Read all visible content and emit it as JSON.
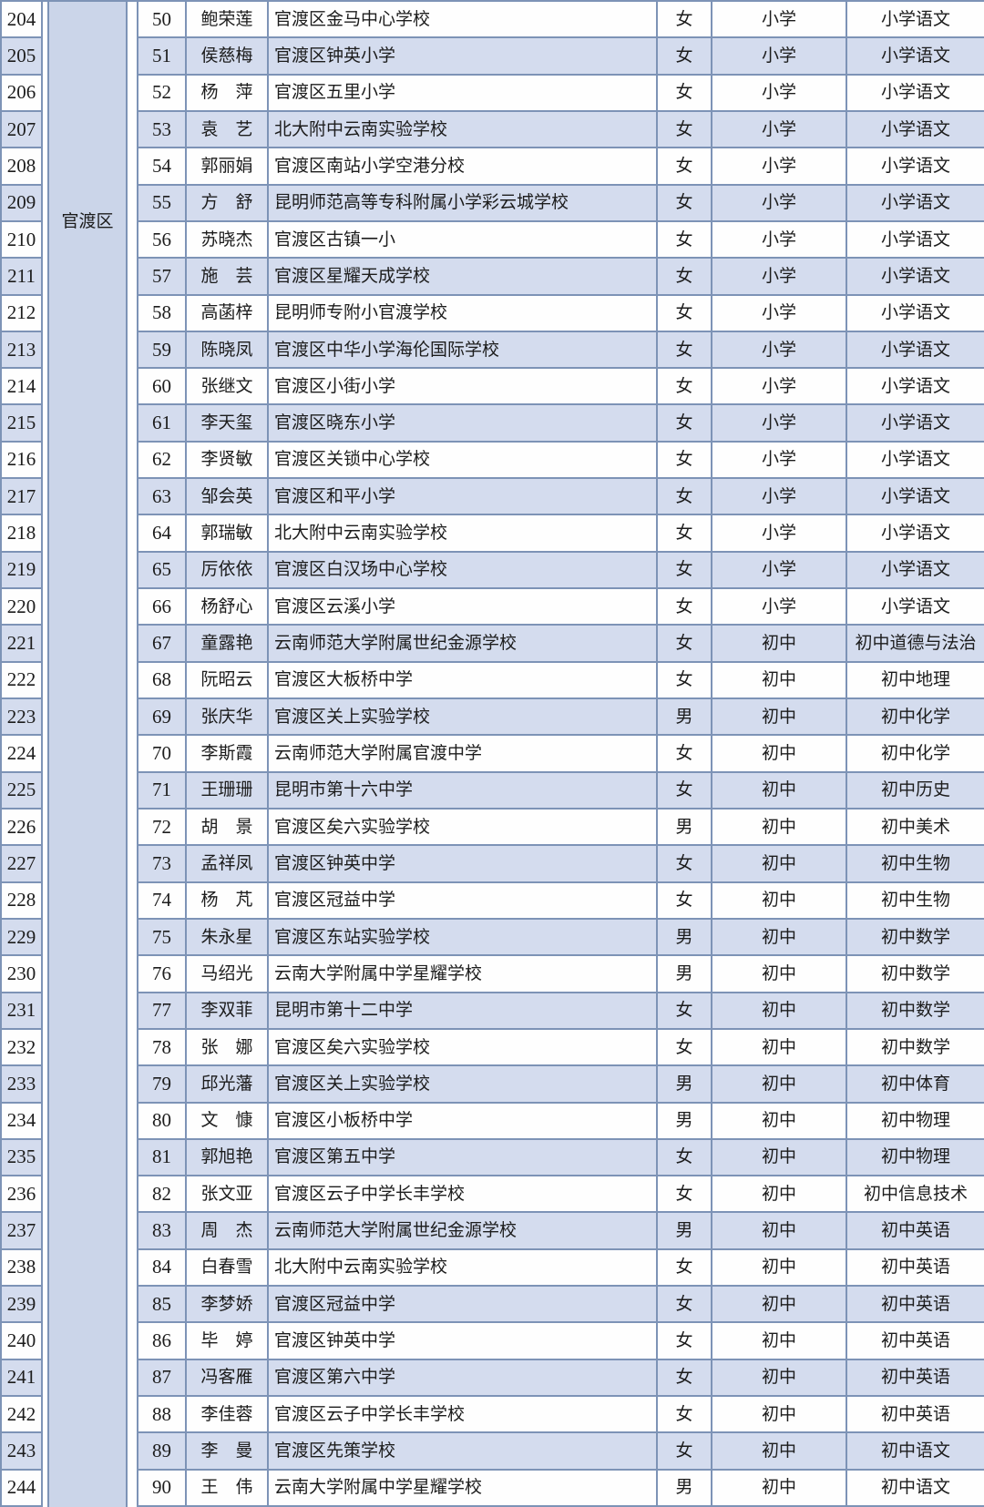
{
  "table": {
    "region_label": "官渡区",
    "rows": [
      [
        204,
        50,
        "鲍荣莲",
        "官渡区金马中心学校",
        "女",
        "小学",
        "小学语文"
      ],
      [
        205,
        51,
        "侯慈梅",
        "官渡区钟英小学",
        "女",
        "小学",
        "小学语文"
      ],
      [
        206,
        52,
        "杨　萍",
        "官渡区五里小学",
        "女",
        "小学",
        "小学语文"
      ],
      [
        207,
        53,
        "袁　艺",
        "北大附中云南实验学校",
        "女",
        "小学",
        "小学语文"
      ],
      [
        208,
        54,
        "郭丽娟",
        "官渡区南站小学空港分校",
        "女",
        "小学",
        "小学语文"
      ],
      [
        209,
        55,
        "方　舒",
        "昆明师范高等专科附属小学彩云城学校",
        "女",
        "小学",
        "小学语文"
      ],
      [
        210,
        56,
        "苏晓杰",
        "官渡区古镇一小",
        "女",
        "小学",
        "小学语文"
      ],
      [
        211,
        57,
        "施　芸",
        "官渡区星耀天成学校",
        "女",
        "小学",
        "小学语文"
      ],
      [
        212,
        58,
        "高菡梓",
        "昆明师专附小官渡学校",
        "女",
        "小学",
        "小学语文"
      ],
      [
        213,
        59,
        "陈晓凤",
        "官渡区中华小学海伦国际学校",
        "女",
        "小学",
        "小学语文"
      ],
      [
        214,
        60,
        "张继文",
        "官渡区小街小学",
        "女",
        "小学",
        "小学语文"
      ],
      [
        215,
        61,
        "李天玺",
        "官渡区晓东小学",
        "女",
        "小学",
        "小学语文"
      ],
      [
        216,
        62,
        "李贤敏",
        "官渡区关锁中心学校",
        "女",
        "小学",
        "小学语文"
      ],
      [
        217,
        63,
        "邹会英",
        "官渡区和平小学",
        "女",
        "小学",
        "小学语文"
      ],
      [
        218,
        64,
        "郭瑞敏",
        "北大附中云南实验学校",
        "女",
        "小学",
        "小学语文"
      ],
      [
        219,
        65,
        "厉依依",
        "官渡区白汉场中心学校",
        "女",
        "小学",
        "小学语文"
      ],
      [
        220,
        66,
        "杨舒心",
        "官渡区云溪小学",
        "女",
        "小学",
        "小学语文"
      ],
      [
        221,
        67,
        "童露艳",
        "云南师范大学附属世纪金源学校",
        "女",
        "初中",
        "初中道德与法治"
      ],
      [
        222,
        68,
        "阮昭云",
        "官渡区大板桥中学",
        "女",
        "初中",
        "初中地理"
      ],
      [
        223,
        69,
        "张庆华",
        "官渡区关上实验学校",
        "男",
        "初中",
        "初中化学"
      ],
      [
        224,
        70,
        "李斯霞",
        "云南师范大学附属官渡中学",
        "女",
        "初中",
        "初中化学"
      ],
      [
        225,
        71,
        "王珊珊",
        "昆明市第十六中学",
        "女",
        "初中",
        "初中历史"
      ],
      [
        226,
        72,
        "胡　景",
        "官渡区矣六实验学校",
        "男",
        "初中",
        "初中美术"
      ],
      [
        227,
        73,
        "孟祥凤",
        "官渡区钟英中学",
        "女",
        "初中",
        "初中生物"
      ],
      [
        228,
        74,
        "杨　芃",
        "官渡区冠益中学",
        "女",
        "初中",
        "初中生物"
      ],
      [
        229,
        75,
        "朱永星",
        "官渡区东站实验学校",
        "男",
        "初中",
        "初中数学"
      ],
      [
        230,
        76,
        "马绍光",
        "云南大学附属中学星耀学校",
        "男",
        "初中",
        "初中数学"
      ],
      [
        231,
        77,
        "李双菲",
        "昆明市第十二中学",
        "女",
        "初中",
        "初中数学"
      ],
      [
        232,
        78,
        "张　娜",
        "官渡区矣六实验学校",
        "女",
        "初中",
        "初中数学"
      ],
      [
        233,
        79,
        "邱光藩",
        "官渡区关上实验学校",
        "男",
        "初中",
        "初中体育"
      ],
      [
        234,
        80,
        "文　慷",
        "官渡区小板桥中学",
        "男",
        "初中",
        "初中物理"
      ],
      [
        235,
        81,
        "郭旭艳",
        "官渡区第五中学",
        "女",
        "初中",
        "初中物理"
      ],
      [
        236,
        82,
        "张文亚",
        "官渡区云子中学长丰学校",
        "女",
        "初中",
        "初中信息技术"
      ],
      [
        237,
        83,
        "周　杰",
        "云南师范大学附属世纪金源学校",
        "男",
        "初中",
        "初中英语"
      ],
      [
        238,
        84,
        "白春雪",
        "北大附中云南实验学校",
        "女",
        "初中",
        "初中英语"
      ],
      [
        239,
        85,
        "李梦娇",
        "官渡区冠益中学",
        "女",
        "初中",
        "初中英语"
      ],
      [
        240,
        86,
        "毕　婷",
        "官渡区钟英中学",
        "女",
        "初中",
        "初中英语"
      ],
      [
        241,
        87,
        "冯客雁",
        "官渡区第六中学",
        "女",
        "初中",
        "初中英语"
      ],
      [
        242,
        88,
        "李佳蓉",
        "官渡区云子中学长丰学校",
        "女",
        "初中",
        "初中英语"
      ],
      [
        243,
        89,
        "李　曼",
        "官渡区先策学校",
        "女",
        "初中",
        "初中语文"
      ],
      [
        244,
        90,
        "王　伟",
        "云南大学附属中学星耀学校",
        "男",
        "初中",
        "初中语文"
      ]
    ]
  },
  "colors": {
    "border": "#7d93b6",
    "row_base": "#fefefe",
    "row_alt": "#d4dcee",
    "region_fill": "#cbd5e9",
    "text": "#1c1c1c"
  }
}
